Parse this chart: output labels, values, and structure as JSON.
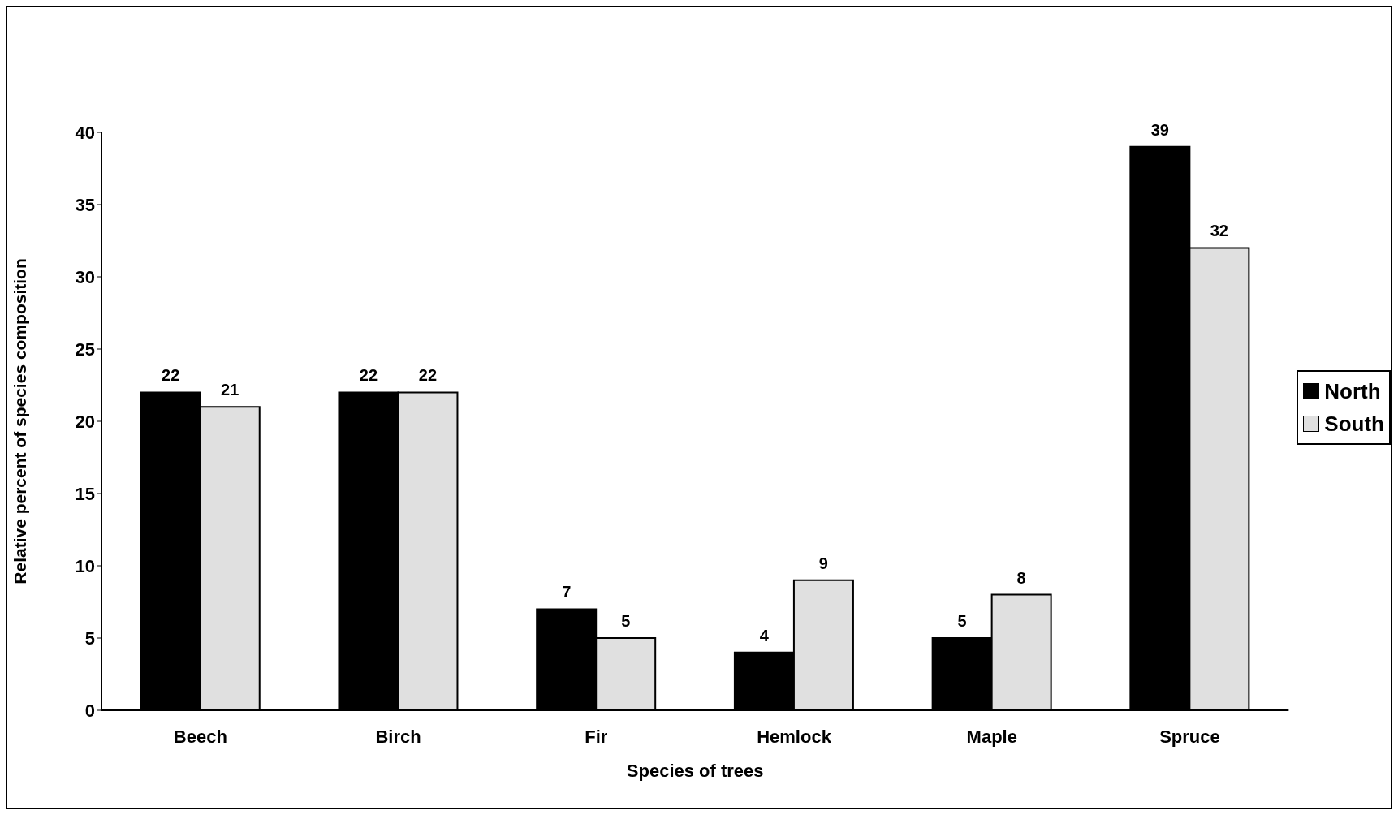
{
  "chart_data": {
    "type": "bar",
    "xlabel": "Species of trees",
    "ylabel": "Relative percent of species composition",
    "categories": [
      "Beech",
      "Birch",
      "Fir",
      "Hemlock",
      "Maple",
      "Spruce"
    ],
    "series": [
      {
        "name": "North",
        "color": "#000000",
        "values": [
          22,
          22,
          7,
          4,
          5,
          39
        ]
      },
      {
        "name": "South",
        "color": "#e0e0e0",
        "values": [
          21,
          22,
          5,
          9,
          8,
          32
        ]
      }
    ],
    "ylim": [
      0,
      40
    ],
    "yticks": [
      0,
      5,
      10,
      15,
      20,
      25,
      30,
      35,
      40
    ],
    "grid": false,
    "legend": "right",
    "data_labels": true
  }
}
